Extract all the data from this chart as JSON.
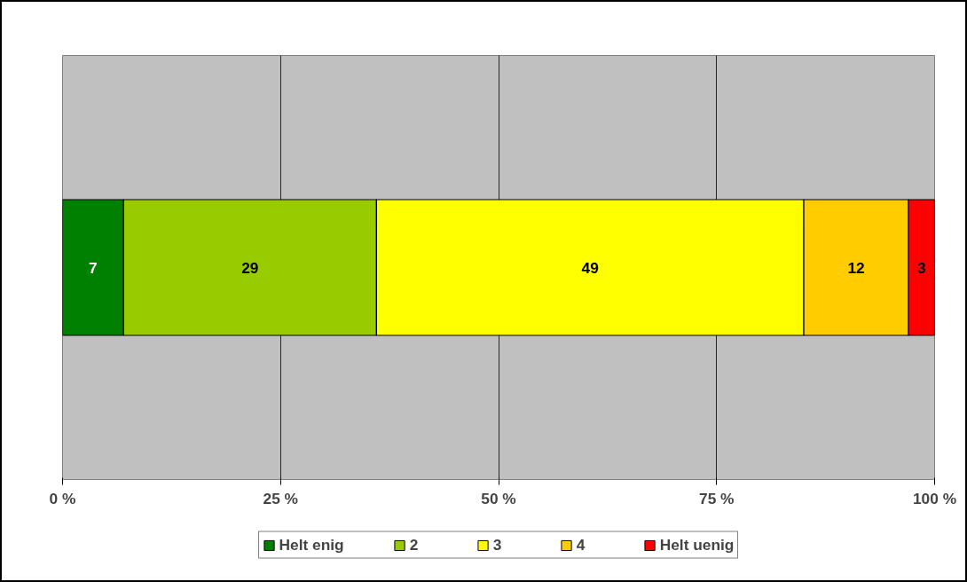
{
  "chart_data": {
    "type": "bar",
    "orientation": "horizontal",
    "stacked": true,
    "categories": [
      null
    ],
    "series": [
      {
        "name": "Helt enig",
        "color": "#008000",
        "values": [
          7
        ]
      },
      {
        "name": "2",
        "color": "#99cc00",
        "values": [
          29
        ]
      },
      {
        "name": "3",
        "color": "#ffff00",
        "values": [
          49
        ]
      },
      {
        "name": "4",
        "color": "#ffcc00",
        "values": [
          12
        ]
      },
      {
        "name": "Helt uenig",
        "color": "#ff0000",
        "values": [
          3
        ]
      }
    ],
    "xlim": [
      0,
      100
    ],
    "xticks": [
      {
        "value": 0,
        "label": "0 %"
      },
      {
        "value": 25,
        "label": "25 %"
      },
      {
        "value": 50,
        "label": "50 %"
      },
      {
        "value": 75,
        "label": "75 %"
      },
      {
        "value": 100,
        "label": "100 %"
      }
    ],
    "grid": "x",
    "legend": "bottom",
    "tick_labels": "x",
    "data_labels": true
  }
}
